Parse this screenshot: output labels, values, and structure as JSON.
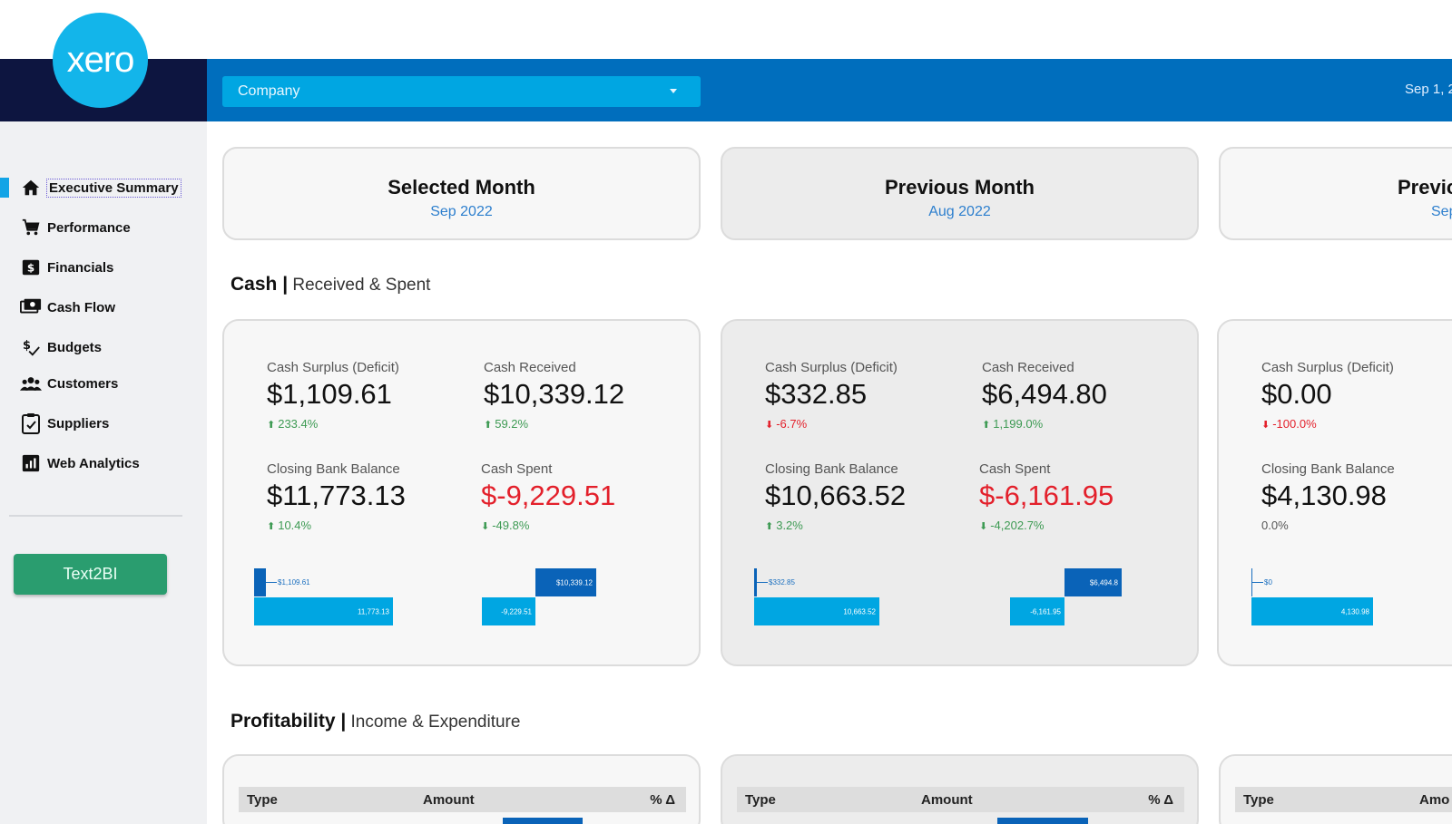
{
  "app": {
    "logo_text": "xero",
    "company_selector": "Company",
    "date_label": "Sep 1, 2"
  },
  "sidebar": {
    "items": [
      {
        "label": "Executive Summary",
        "icon": "home-icon"
      },
      {
        "label": "Performance",
        "icon": "cart-icon"
      },
      {
        "label": "Financials",
        "icon": "dollar-icon"
      },
      {
        "label": "Cash Flow",
        "icon": "cash-icon"
      },
      {
        "label": "Budgets",
        "icon": "budget-icon"
      },
      {
        "label": "Customers",
        "icon": "users-icon"
      },
      {
        "label": "Suppliers",
        "icon": "clipboard-icon"
      },
      {
        "label": "Web Analytics",
        "icon": "analytics-icon"
      }
    ],
    "button_label": "Text2BI"
  },
  "periods": [
    {
      "title": "Selected Month",
      "date": "Sep 2022"
    },
    {
      "title": "Previous Month",
      "date": "Aug 2022"
    },
    {
      "title": "Previc",
      "date": "Sep"
    }
  ],
  "sections": {
    "cash": {
      "title": "Cash",
      "sep": " |",
      "subtitle": " Received & Spent"
    },
    "profit": {
      "title": "Profitability",
      "sep": " |",
      "subtitle": " Income & Expenditure"
    }
  },
  "cash_cards": [
    {
      "surplus_label": "Cash Surplus (Deficit)",
      "surplus_value": "$1,109.61",
      "surplus_delta": "233.4%",
      "received_label": "Cash Received",
      "received_value": "$10,339.12",
      "received_delta": "59.2%",
      "balance_label": "Closing Bank Balance",
      "balance_value": "$11,773.13",
      "balance_delta": "10.4%",
      "spent_label": "Cash Spent",
      "spent_value": "$-9,229.51",
      "spent_delta": "-49.8%",
      "chart": {
        "surplus": "$1,109.61",
        "balance": "11,773.13",
        "received": "$10,339.12",
        "spent": "-9,229.51"
      }
    },
    {
      "surplus_label": "Cash Surplus (Deficit)",
      "surplus_value": "$332.85",
      "surplus_delta": "-6.7%",
      "received_label": "Cash Received",
      "received_value": "$6,494.80",
      "received_delta": "1,199.0%",
      "balance_label": "Closing Bank Balance",
      "balance_value": "$10,663.52",
      "balance_delta": "3.2%",
      "spent_label": "Cash Spent",
      "spent_value": "$-6,161.95",
      "spent_delta": "-4,202.7%",
      "chart": {
        "surplus": "$332.85",
        "balance": "10,663.52",
        "received": "$6,494.8",
        "spent": "-6,161.95"
      }
    },
    {
      "surplus_label": "Cash Surplus (Deficit)",
      "surplus_value": "$0.00",
      "surplus_delta": "-100.0%",
      "balance_label": "Closing Bank Balance",
      "balance_value": "$4,130.98",
      "balance_delta": "0.0%",
      "chart": {
        "surplus": "$0",
        "balance": "4,130.98"
      }
    }
  ],
  "profit_table": {
    "headers": [
      "Type",
      "Amount",
      "% Δ"
    ],
    "third_headers": [
      "Type",
      "Amo"
    ]
  }
}
